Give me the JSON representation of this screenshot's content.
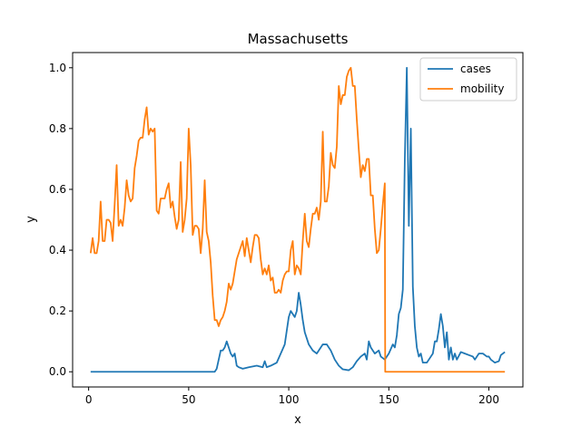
{
  "chart_data": {
    "type": "line",
    "title": "Massachusetts",
    "xlabel": "x",
    "ylabel": "y",
    "xlim": [
      -8,
      217
    ],
    "ylim": [
      -0.05,
      1.05
    ],
    "x_ticks": [
      0,
      50,
      100,
      150,
      200
    ],
    "y_ticks": [
      0.0,
      0.2,
      0.4,
      0.6,
      0.8,
      1.0
    ],
    "x_tick_labels": [
      "0",
      "50",
      "100",
      "150",
      "200"
    ],
    "y_tick_labels": [
      "0.0",
      "0.2",
      "0.4",
      "0.6",
      "0.8",
      "1.0"
    ],
    "grid": false,
    "legend_position": "top-right",
    "series": [
      {
        "name": "cases",
        "color": "#1f77b4",
        "points": [
          [
            1,
            0
          ],
          [
            10,
            0
          ],
          [
            20,
            0
          ],
          [
            30,
            0
          ],
          [
            40,
            0
          ],
          [
            50,
            0
          ],
          [
            60,
            0
          ],
          [
            63,
            0
          ],
          [
            64,
            0.01
          ],
          [
            65,
            0.04
          ],
          [
            66,
            0.07
          ],
          [
            67,
            0.07
          ],
          [
            68,
            0.08
          ],
          [
            69,
            0.1
          ],
          [
            70,
            0.08
          ],
          [
            71,
            0.06
          ],
          [
            72,
            0.05
          ],
          [
            73,
            0.06
          ],
          [
            74,
            0.02
          ],
          [
            75,
            0.015
          ],
          [
            77,
            0.01
          ],
          [
            80,
            0.015
          ],
          [
            84,
            0.02
          ],
          [
            87,
            0.015
          ],
          [
            88,
            0.035
          ],
          [
            89,
            0.015
          ],
          [
            91,
            0.02
          ],
          [
            94,
            0.03
          ],
          [
            96,
            0.06
          ],
          [
            98,
            0.09
          ],
          [
            100,
            0.18
          ],
          [
            101,
            0.2
          ],
          [
            102,
            0.19
          ],
          [
            103,
            0.18
          ],
          [
            104,
            0.2
          ],
          [
            105,
            0.26
          ],
          [
            106,
            0.22
          ],
          [
            107,
            0.17
          ],
          [
            108,
            0.13
          ],
          [
            110,
            0.09
          ],
          [
            112,
            0.07
          ],
          [
            114,
            0.06
          ],
          [
            116,
            0.08
          ],
          [
            117,
            0.09
          ],
          [
            119,
            0.09
          ],
          [
            121,
            0.07
          ],
          [
            123,
            0.04
          ],
          [
            125,
            0.02
          ],
          [
            127,
            0.008
          ],
          [
            130,
            0.005
          ],
          [
            132,
            0.015
          ],
          [
            134,
            0.035
          ],
          [
            136,
            0.05
          ],
          [
            138,
            0.06
          ],
          [
            139,
            0.04
          ],
          [
            140,
            0.1
          ],
          [
            141,
            0.08
          ],
          [
            143,
            0.06
          ],
          [
            145,
            0.07
          ],
          [
            146,
            0.05
          ],
          [
            148,
            0.04
          ],
          [
            150,
            0.06
          ],
          [
            152,
            0.09
          ],
          [
            153,
            0.08
          ],
          [
            154,
            0.12
          ],
          [
            155,
            0.19
          ],
          [
            156,
            0.21
          ],
          [
            157,
            0.27
          ],
          [
            158,
            0.7
          ],
          [
            159,
            1.0
          ],
          [
            160,
            0.48
          ],
          [
            161,
            0.8
          ],
          [
            162,
            0.28
          ],
          [
            163,
            0.15
          ],
          [
            164,
            0.08
          ],
          [
            165,
            0.05
          ],
          [
            166,
            0.06
          ],
          [
            167,
            0.03
          ],
          [
            169,
            0.03
          ],
          [
            170,
            0.04
          ],
          [
            172,
            0.06
          ],
          [
            173,
            0.1
          ],
          [
            174,
            0.1
          ],
          [
            175,
            0.14
          ],
          [
            176,
            0.19
          ],
          [
            177,
            0.15
          ],
          [
            178,
            0.08
          ],
          [
            179,
            0.13
          ],
          [
            180,
            0.04
          ],
          [
            181,
            0.08
          ],
          [
            182,
            0.04
          ],
          [
            183,
            0.06
          ],
          [
            184,
            0.04
          ],
          [
            186,
            0.065
          ],
          [
            188,
            0.06
          ],
          [
            190,
            0.055
          ],
          [
            192,
            0.05
          ],
          [
            193,
            0.04
          ],
          [
            195,
            0.06
          ],
          [
            197,
            0.06
          ],
          [
            199,
            0.05
          ],
          [
            200,
            0.05
          ],
          [
            201,
            0.04
          ],
          [
            203,
            0.03
          ],
          [
            205,
            0.035
          ],
          [
            206,
            0.055
          ],
          [
            208,
            0.065
          ]
        ]
      },
      {
        "name": "mobility",
        "color": "#ff7f0e",
        "points": [
          [
            1,
            0.39
          ],
          [
            2,
            0.44
          ],
          [
            3,
            0.39
          ],
          [
            4,
            0.39
          ],
          [
            5,
            0.43
          ],
          [
            6,
            0.56
          ],
          [
            7,
            0.43
          ],
          [
            8,
            0.43
          ],
          [
            9,
            0.5
          ],
          [
            10,
            0.5
          ],
          [
            11,
            0.49
          ],
          [
            12,
            0.43
          ],
          [
            13,
            0.55
          ],
          [
            14,
            0.68
          ],
          [
            15,
            0.48
          ],
          [
            16,
            0.5
          ],
          [
            17,
            0.48
          ],
          [
            18,
            0.54
          ],
          [
            19,
            0.63
          ],
          [
            20,
            0.58
          ],
          [
            21,
            0.56
          ],
          [
            22,
            0.57
          ],
          [
            23,
            0.67
          ],
          [
            24,
            0.71
          ],
          [
            25,
            0.76
          ],
          [
            26,
            0.77
          ],
          [
            27,
            0.77
          ],
          [
            28,
            0.83
          ],
          [
            29,
            0.87
          ],
          [
            30,
            0.78
          ],
          [
            31,
            0.8
          ],
          [
            32,
            0.79
          ],
          [
            33,
            0.8
          ],
          [
            34,
            0.53
          ],
          [
            35,
            0.52
          ],
          [
            36,
            0.57
          ],
          [
            37,
            0.57
          ],
          [
            38,
            0.57
          ],
          [
            39,
            0.6
          ],
          [
            40,
            0.62
          ],
          [
            41,
            0.54
          ],
          [
            42,
            0.56
          ],
          [
            43,
            0.51
          ],
          [
            44,
            0.47
          ],
          [
            45,
            0.5
          ],
          [
            46,
            0.69
          ],
          [
            47,
            0.46
          ],
          [
            48,
            0.5
          ],
          [
            49,
            0.57
          ],
          [
            50,
            0.8
          ],
          [
            51,
            0.68
          ],
          [
            52,
            0.45
          ],
          [
            53,
            0.48
          ],
          [
            54,
            0.48
          ],
          [
            55,
            0.47
          ],
          [
            56,
            0.39
          ],
          [
            57,
            0.47
          ],
          [
            58,
            0.63
          ],
          [
            59,
            0.46
          ],
          [
            60,
            0.43
          ],
          [
            61,
            0.36
          ],
          [
            62,
            0.25
          ],
          [
            63,
            0.17
          ],
          [
            64,
            0.17
          ],
          [
            65,
            0.15
          ],
          [
            66,
            0.17
          ],
          [
            67,
            0.18
          ],
          [
            68,
            0.2
          ],
          [
            69,
            0.23
          ],
          [
            70,
            0.29
          ],
          [
            71,
            0.27
          ],
          [
            72,
            0.29
          ],
          [
            73,
            0.33
          ],
          [
            74,
            0.37
          ],
          [
            75,
            0.39
          ],
          [
            76,
            0.41
          ],
          [
            77,
            0.43
          ],
          [
            78,
            0.38
          ],
          [
            79,
            0.44
          ],
          [
            80,
            0.4
          ],
          [
            81,
            0.36
          ],
          [
            82,
            0.41
          ],
          [
            83,
            0.45
          ],
          [
            84,
            0.45
          ],
          [
            85,
            0.44
          ],
          [
            86,
            0.37
          ],
          [
            87,
            0.32
          ],
          [
            88,
            0.34
          ],
          [
            89,
            0.32
          ],
          [
            90,
            0.35
          ],
          [
            91,
            0.3
          ],
          [
            92,
            0.31
          ],
          [
            93,
            0.26
          ],
          [
            94,
            0.26
          ],
          [
            95,
            0.27
          ],
          [
            96,
            0.26
          ],
          [
            97,
            0.3
          ],
          [
            98,
            0.32
          ],
          [
            99,
            0.33
          ],
          [
            100,
            0.33
          ],
          [
            101,
            0.4
          ],
          [
            102,
            0.43
          ],
          [
            103,
            0.32
          ],
          [
            104,
            0.35
          ],
          [
            105,
            0.34
          ],
          [
            106,
            0.32
          ],
          [
            107,
            0.43
          ],
          [
            108,
            0.52
          ],
          [
            109,
            0.43
          ],
          [
            110,
            0.41
          ],
          [
            111,
            0.47
          ],
          [
            112,
            0.52
          ],
          [
            113,
            0.52
          ],
          [
            114,
            0.54
          ],
          [
            115,
            0.5
          ],
          [
            116,
            0.56
          ],
          [
            117,
            0.79
          ],
          [
            118,
            0.56
          ],
          [
            119,
            0.56
          ],
          [
            120,
            0.61
          ],
          [
            121,
            0.72
          ],
          [
            122,
            0.68
          ],
          [
            123,
            0.67
          ],
          [
            124,
            0.74
          ],
          [
            125,
            0.94
          ],
          [
            126,
            0.88
          ],
          [
            127,
            0.91
          ],
          [
            128,
            0.91
          ],
          [
            129,
            0.97
          ],
          [
            130,
            0.99
          ],
          [
            131,
            1.0
          ],
          [
            132,
            0.94
          ],
          [
            133,
            0.94
          ],
          [
            134,
            0.83
          ],
          [
            135,
            0.73
          ],
          [
            136,
            0.64
          ],
          [
            137,
            0.68
          ],
          [
            138,
            0.66
          ],
          [
            139,
            0.7
          ],
          [
            140,
            0.7
          ],
          [
            141,
            0.58
          ],
          [
            142,
            0.58
          ],
          [
            143,
            0.47
          ],
          [
            144,
            0.39
          ],
          [
            145,
            0.4
          ],
          [
            146,
            0.47
          ],
          [
            147,
            0.55
          ],
          [
            148,
            0.62
          ],
          [
            148.2,
            0.0
          ],
          [
            150,
            0.0
          ],
          [
            160,
            0.0
          ],
          [
            170,
            0.0
          ],
          [
            180,
            0.0
          ],
          [
            190,
            0.0
          ],
          [
            200,
            0.0
          ],
          [
            208,
            0.0
          ]
        ]
      }
    ]
  }
}
